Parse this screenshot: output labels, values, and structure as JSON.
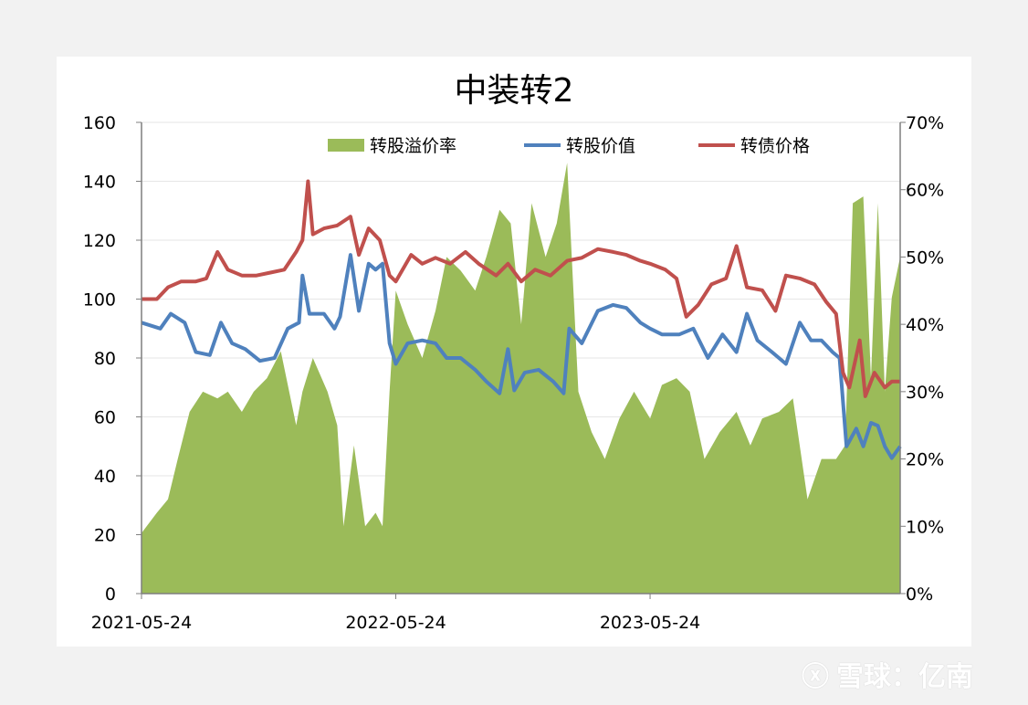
{
  "chart_data": {
    "type": "line+area",
    "title": "中装转2",
    "x_ticks": [
      "2021-05-24",
      "2022-05-24",
      "2023-05-24"
    ],
    "x_range": [
      "2021-05-24",
      "2024-05-17"
    ],
    "y_left": {
      "range": [
        0,
        160
      ],
      "ticks": [
        "0",
        "20",
        "40",
        "60",
        "80",
        "100",
        "120",
        "140",
        "160"
      ]
    },
    "y_right": {
      "range": [
        0,
        0.7
      ],
      "ticks": [
        "0%",
        "10%",
        "20%",
        "30%",
        "40%",
        "50%",
        "60%",
        "70%"
      ]
    },
    "legend_position": "top",
    "grid": "horizontal",
    "series": [
      {
        "name": "转股溢价率",
        "kind": "area",
        "axis": "right",
        "color": "#9bbb59",
        "points": [
          [
            "2021-05-24",
            0.09
          ],
          [
            "2021-06-15",
            0.12
          ],
          [
            "2021-07-01",
            0.14
          ],
          [
            "2021-07-15",
            0.2
          ],
          [
            "2021-08-01",
            0.27
          ],
          [
            "2021-08-20",
            0.3
          ],
          [
            "2021-09-10",
            0.29
          ],
          [
            "2021-09-25",
            0.3
          ],
          [
            "2021-10-15",
            0.27
          ],
          [
            "2021-11-01",
            0.3
          ],
          [
            "2021-11-20",
            0.32
          ],
          [
            "2021-12-10",
            0.36
          ],
          [
            "2022-01-01",
            0.25
          ],
          [
            "2022-01-10",
            0.3
          ],
          [
            "2022-01-25",
            0.35
          ],
          [
            "2022-02-15",
            0.3
          ],
          [
            "2022-03-01",
            0.25
          ],
          [
            "2022-03-10",
            0.1
          ],
          [
            "2022-03-25",
            0.22
          ],
          [
            "2022-04-10",
            0.1
          ],
          [
            "2022-04-25",
            0.12
          ],
          [
            "2022-05-05",
            0.1
          ],
          [
            "2022-05-15",
            0.3
          ],
          [
            "2022-05-24",
            0.45
          ],
          [
            "2022-06-10",
            0.4
          ],
          [
            "2022-07-01",
            0.35
          ],
          [
            "2022-07-20",
            0.42
          ],
          [
            "2022-08-05",
            0.5
          ],
          [
            "2022-08-25",
            0.48
          ],
          [
            "2022-09-15",
            0.45
          ],
          [
            "2022-10-01",
            0.5
          ],
          [
            "2022-10-20",
            0.57
          ],
          [
            "2022-11-05",
            0.55
          ],
          [
            "2022-11-20",
            0.4
          ],
          [
            "2022-12-05",
            0.58
          ],
          [
            "2022-12-25",
            0.5
          ],
          [
            "2023-01-10",
            0.55
          ],
          [
            "2023-01-25",
            0.64
          ],
          [
            "2023-02-10",
            0.3
          ],
          [
            "2023-03-01",
            0.24
          ],
          [
            "2023-03-20",
            0.2
          ],
          [
            "2023-04-10",
            0.26
          ],
          [
            "2023-05-01",
            0.3
          ],
          [
            "2023-05-24",
            0.26
          ],
          [
            "2023-06-10",
            0.31
          ],
          [
            "2023-07-01",
            0.32
          ],
          [
            "2023-07-20",
            0.3
          ],
          [
            "2023-08-10",
            0.2
          ],
          [
            "2023-09-01",
            0.24
          ],
          [
            "2023-09-25",
            0.27
          ],
          [
            "2023-10-15",
            0.22
          ],
          [
            "2023-11-01",
            0.26
          ],
          [
            "2023-11-25",
            0.27
          ],
          [
            "2023-12-15",
            0.29
          ],
          [
            "2024-01-05",
            0.14
          ],
          [
            "2024-01-25",
            0.2
          ],
          [
            "2024-02-15",
            0.2
          ],
          [
            "2024-02-28",
            0.22
          ],
          [
            "2024-03-10",
            0.58
          ],
          [
            "2024-03-25",
            0.59
          ],
          [
            "2024-04-05",
            0.32
          ],
          [
            "2024-04-15",
            0.58
          ],
          [
            "2024-04-25",
            0.3
          ],
          [
            "2024-05-05",
            0.44
          ],
          [
            "2024-05-17",
            0.5
          ]
        ]
      },
      {
        "name": "转股价值",
        "kind": "line",
        "axis": "left",
        "color": "#4f81bd",
        "points": [
          [
            "2021-05-24",
            92
          ],
          [
            "2021-06-20",
            90
          ],
          [
            "2021-07-05",
            95
          ],
          [
            "2021-07-25",
            92
          ],
          [
            "2021-08-10",
            82
          ],
          [
            "2021-08-30",
            81
          ],
          [
            "2021-09-15",
            92
          ],
          [
            "2021-10-01",
            85
          ],
          [
            "2021-10-20",
            83
          ],
          [
            "2021-11-10",
            79
          ],
          [
            "2021-12-01",
            80
          ],
          [
            "2021-12-20",
            90
          ],
          [
            "2022-01-05",
            92
          ],
          [
            "2022-01-10",
            108
          ],
          [
            "2022-01-20",
            95
          ],
          [
            "2022-02-10",
            95
          ],
          [
            "2022-02-25",
            90
          ],
          [
            "2022-03-05",
            94
          ],
          [
            "2022-03-20",
            115
          ],
          [
            "2022-04-01",
            96
          ],
          [
            "2022-04-15",
            112
          ],
          [
            "2022-04-25",
            110
          ],
          [
            "2022-05-05",
            112
          ],
          [
            "2022-05-15",
            85
          ],
          [
            "2022-05-24",
            78
          ],
          [
            "2022-06-10",
            85
          ],
          [
            "2022-07-01",
            86
          ],
          [
            "2022-07-20",
            85
          ],
          [
            "2022-08-05",
            80
          ],
          [
            "2022-08-25",
            80
          ],
          [
            "2022-09-15",
            76
          ],
          [
            "2022-10-01",
            72
          ],
          [
            "2022-10-20",
            68
          ],
          [
            "2022-11-01",
            83
          ],
          [
            "2022-11-10",
            69
          ],
          [
            "2022-11-25",
            75
          ],
          [
            "2022-12-15",
            76
          ],
          [
            "2023-01-05",
            72
          ],
          [
            "2023-01-20",
            68
          ],
          [
            "2023-01-28",
            90
          ],
          [
            "2023-02-15",
            85
          ],
          [
            "2023-03-10",
            96
          ],
          [
            "2023-04-01",
            98
          ],
          [
            "2023-04-20",
            97
          ],
          [
            "2023-05-10",
            92
          ],
          [
            "2023-05-24",
            90
          ],
          [
            "2023-06-10",
            88
          ],
          [
            "2023-07-05",
            88
          ],
          [
            "2023-07-25",
            90
          ],
          [
            "2023-08-15",
            80
          ],
          [
            "2023-09-05",
            88
          ],
          [
            "2023-09-25",
            82
          ],
          [
            "2023-10-10",
            95
          ],
          [
            "2023-10-25",
            86
          ],
          [
            "2023-11-15",
            82
          ],
          [
            "2023-12-05",
            78
          ],
          [
            "2023-12-25",
            92
          ],
          [
            "2024-01-10",
            86
          ],
          [
            "2024-01-25",
            86
          ],
          [
            "2024-02-10",
            82
          ],
          [
            "2024-02-20",
            80
          ],
          [
            "2024-03-01",
            50
          ],
          [
            "2024-03-15",
            56
          ],
          [
            "2024-03-25",
            50
          ],
          [
            "2024-04-05",
            58
          ],
          [
            "2024-04-15",
            57
          ],
          [
            "2024-04-25",
            50
          ],
          [
            "2024-05-05",
            46
          ],
          [
            "2024-05-17",
            50
          ]
        ]
      },
      {
        "name": "转债价格",
        "kind": "line",
        "axis": "left",
        "color": "#c0504d",
        "points": [
          [
            "2021-05-24",
            100
          ],
          [
            "2021-06-15",
            100
          ],
          [
            "2021-07-01",
            104
          ],
          [
            "2021-07-20",
            106
          ],
          [
            "2021-08-10",
            106
          ],
          [
            "2021-08-25",
            107
          ],
          [
            "2021-09-10",
            116
          ],
          [
            "2021-09-25",
            110
          ],
          [
            "2021-10-15",
            108
          ],
          [
            "2021-11-05",
            108
          ],
          [
            "2021-11-25",
            109
          ],
          [
            "2021-12-15",
            110
          ],
          [
            "2022-01-01",
            116
          ],
          [
            "2022-01-10",
            120
          ],
          [
            "2022-01-18",
            140
          ],
          [
            "2022-01-25",
            122
          ],
          [
            "2022-02-10",
            124
          ],
          [
            "2022-03-01",
            125
          ],
          [
            "2022-03-20",
            128
          ],
          [
            "2022-04-01",
            115
          ],
          [
            "2022-04-15",
            124
          ],
          [
            "2022-05-01",
            120
          ],
          [
            "2022-05-15",
            108
          ],
          [
            "2022-05-24",
            106
          ],
          [
            "2022-06-15",
            115
          ],
          [
            "2022-07-01",
            112
          ],
          [
            "2022-07-20",
            114
          ],
          [
            "2022-08-10",
            112
          ],
          [
            "2022-09-01",
            116
          ],
          [
            "2022-09-20",
            112
          ],
          [
            "2022-10-15",
            108
          ],
          [
            "2022-11-01",
            112
          ],
          [
            "2022-11-20",
            106
          ],
          [
            "2022-12-10",
            110
          ],
          [
            "2023-01-01",
            108
          ],
          [
            "2023-01-25",
            113
          ],
          [
            "2023-02-15",
            114
          ],
          [
            "2023-03-10",
            117
          ],
          [
            "2023-04-01",
            116
          ],
          [
            "2023-04-20",
            115
          ],
          [
            "2023-05-10",
            113
          ],
          [
            "2023-05-24",
            112
          ],
          [
            "2023-06-15",
            110
          ],
          [
            "2023-07-01",
            107
          ],
          [
            "2023-07-15",
            94
          ],
          [
            "2023-08-01",
            98
          ],
          [
            "2023-08-20",
            105
          ],
          [
            "2023-09-10",
            107
          ],
          [
            "2023-09-25",
            118
          ],
          [
            "2023-10-10",
            104
          ],
          [
            "2023-11-01",
            103
          ],
          [
            "2023-11-20",
            96
          ],
          [
            "2023-12-05",
            108
          ],
          [
            "2023-12-25",
            107
          ],
          [
            "2024-01-15",
            105
          ],
          [
            "2024-02-01",
            99
          ],
          [
            "2024-02-15",
            95
          ],
          [
            "2024-02-25",
            75
          ],
          [
            "2024-03-05",
            70
          ],
          [
            "2024-03-20",
            86
          ],
          [
            "2024-03-28",
            67
          ],
          [
            "2024-04-10",
            75
          ],
          [
            "2024-04-25",
            70
          ],
          [
            "2024-05-05",
            72
          ],
          [
            "2024-05-17",
            72
          ]
        ]
      }
    ]
  },
  "watermark": "雪球：亿南",
  "watermark_icon": "xueqiu-logo"
}
